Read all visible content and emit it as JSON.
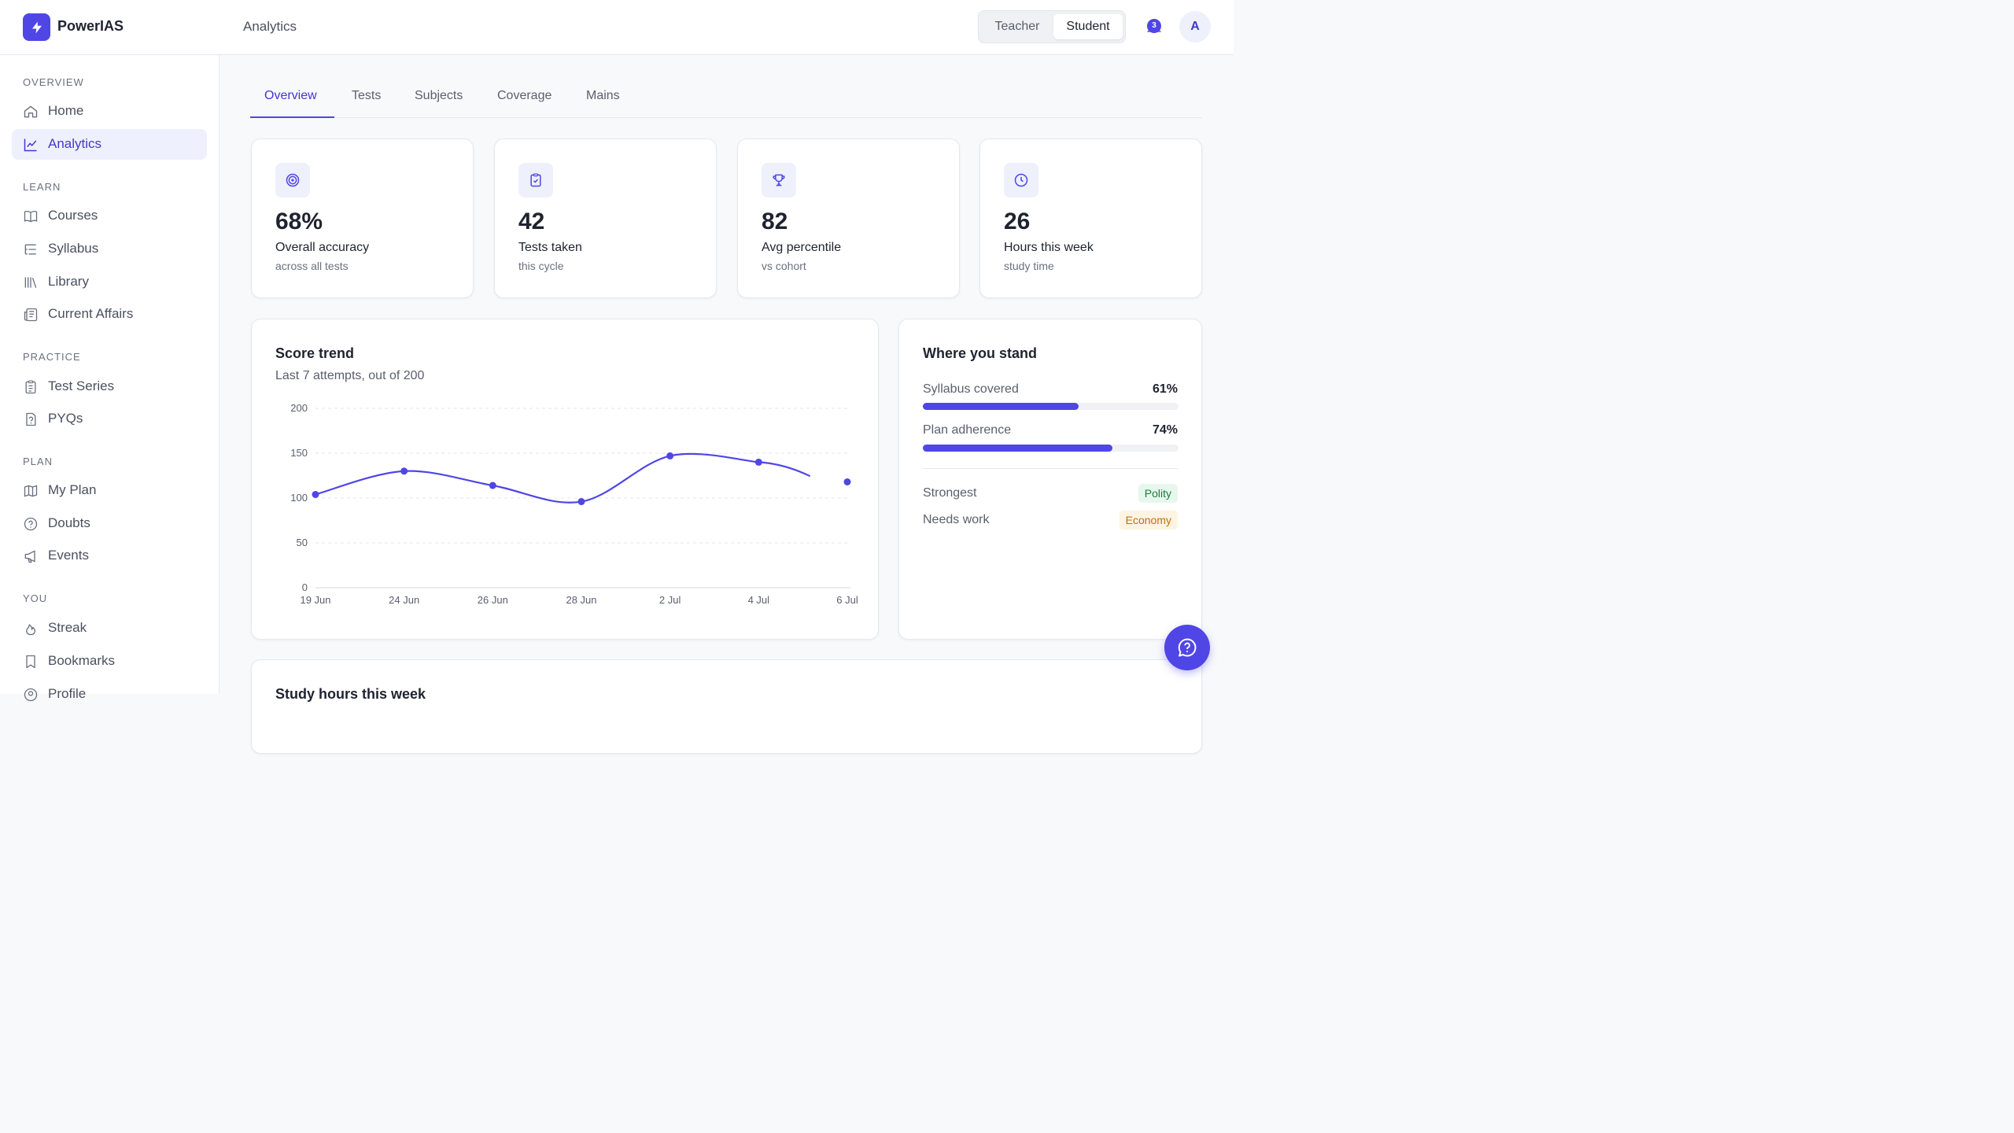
{
  "header": {
    "brand": "PowerIAS",
    "page_title": "Analytics",
    "roles": [
      "Teacher",
      "Student"
    ],
    "active_role": "Student",
    "notification_count": "3",
    "avatar_initial": "A"
  },
  "sidebar": {
    "sections": [
      {
        "label": "OVERVIEW",
        "items": [
          {
            "label": "Home",
            "icon": "home-icon"
          },
          {
            "label": "Analytics",
            "icon": "line-chart-icon",
            "active": true
          }
        ]
      },
      {
        "label": "LEARN",
        "items": [
          {
            "label": "Courses",
            "icon": "book-open-icon"
          },
          {
            "label": "Syllabus",
            "icon": "list-tree-icon"
          },
          {
            "label": "Library",
            "icon": "library-icon"
          },
          {
            "label": "Current Affairs",
            "icon": "newspaper-icon"
          }
        ]
      },
      {
        "label": "PRACTICE",
        "items": [
          {
            "label": "Test Series",
            "icon": "clipboard-list-icon"
          },
          {
            "label": "PYQs",
            "icon": "file-question-icon"
          }
        ]
      },
      {
        "label": "PLAN",
        "items": [
          {
            "label": "My Plan",
            "icon": "map-icon"
          },
          {
            "label": "Doubts",
            "icon": "help-circle-icon"
          },
          {
            "label": "Events",
            "icon": "megaphone-icon"
          }
        ]
      },
      {
        "label": "YOU",
        "items": [
          {
            "label": "Streak",
            "icon": "flame-icon"
          },
          {
            "label": "Bookmarks",
            "icon": "bookmark-icon"
          },
          {
            "label": "Profile",
            "icon": "user-circle-icon"
          }
        ]
      }
    ]
  },
  "tabs": [
    {
      "label": "Overview",
      "active": true
    },
    {
      "label": "Tests"
    },
    {
      "label": "Subjects"
    },
    {
      "label": "Coverage"
    },
    {
      "label": "Mains"
    }
  ],
  "stats": [
    {
      "value": "68%",
      "label": "Overall accuracy",
      "sub": "across all tests",
      "icon": "target-icon"
    },
    {
      "value": "42",
      "label": "Tests taken",
      "sub": "this cycle",
      "icon": "clipboard-check-icon"
    },
    {
      "value": "82",
      "label": "Avg percentile",
      "sub": "vs cohort",
      "icon": "trophy-icon"
    },
    {
      "value": "26",
      "label": "Hours this week",
      "sub": "study time",
      "icon": "clock-icon"
    }
  ],
  "score_trend": {
    "title": "Score trend",
    "subtitle": "Last 7 attempts, out of 200",
    "chart_data": {
      "type": "line",
      "categories": [
        "19 Jun",
        "24 Jun",
        "26 Jun",
        "28 Jun",
        "2 Jul",
        "4 Jul",
        "6 Jul"
      ],
      "values": [
        104,
        130,
        114,
        96,
        147,
        140,
        118
      ],
      "yticks": [
        "0",
        "50",
        "100",
        "150",
        "200"
      ],
      "ylim": [
        0,
        200
      ],
      "grid": true,
      "color": "#4f46e5"
    }
  },
  "where_you_stand": {
    "title": "Where you stand",
    "metrics": [
      {
        "label": "Syllabus covered",
        "value": "61%",
        "fraction": 0.61
      },
      {
        "label": "Plan adherence",
        "value": "74%",
        "fraction": 0.74
      }
    ],
    "strongest_label": "Strongest",
    "strongest_value": "Polity",
    "needs_work_label": "Needs work",
    "needs_work_value": "Economy"
  },
  "study_hours": {
    "title": "Study hours this week"
  },
  "colors": {
    "accent": "#4f46e5",
    "strong_bg": "#e8f7ee",
    "strong_text": "#15803d",
    "weak_bg": "#fdf4e3",
    "weak_text": "#c2700a"
  }
}
